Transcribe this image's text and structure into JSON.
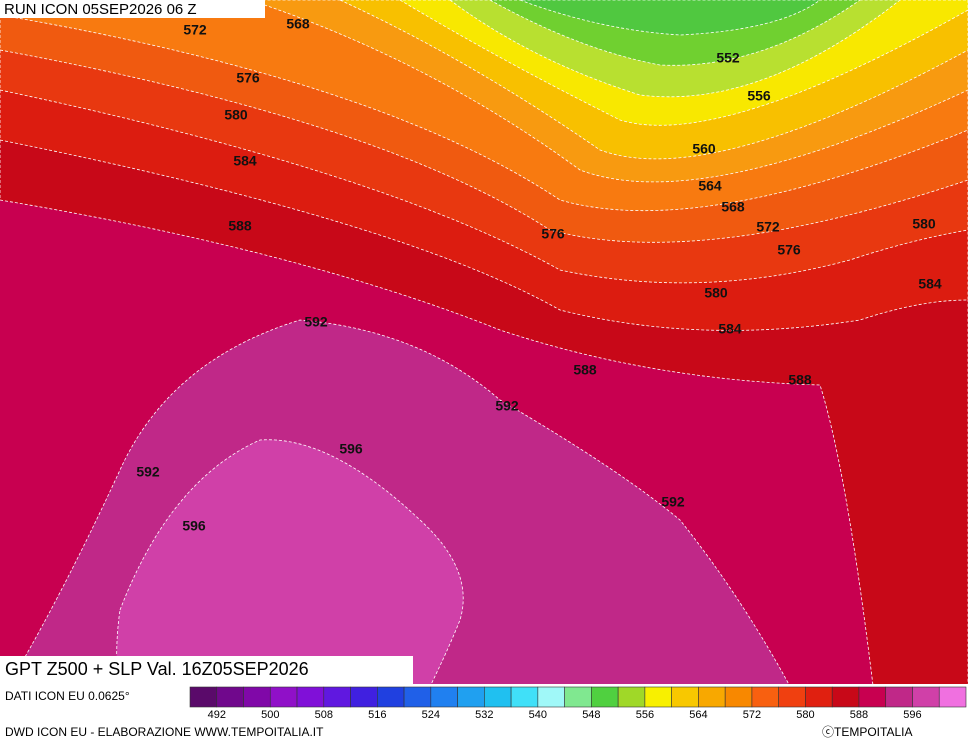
{
  "header": {
    "run": "RUN ICON 05SEP2026 06 Z"
  },
  "map": {
    "title": "GPT Z500 + SLP Val. 16Z05SEP2026",
    "contour_labels": [
      572,
      568,
      576,
      580,
      584,
      588,
      592,
      596,
      592,
      596,
      592,
      592,
      588,
      588,
      584,
      580,
      576,
      576,
      572,
      568,
      564,
      560,
      556,
      552,
      580,
      584
    ]
  },
  "footer": {
    "data_source": "DATI ICON EU 0.0625°",
    "credits": "DWD ICON EU - ELABORAZIONE WWW.TEMPOITALIA.IT",
    "copyright": "ⓒTEMPOITALIA"
  },
  "colorbar": {
    "colors": [
      "#5a0a6a",
      "#70088c",
      "#8008a8",
      "#9010c8",
      "#8010d8",
      "#6018e0",
      "#4020e0",
      "#2040e0",
      "#2060e8",
      "#2080f0",
      "#20a0f0",
      "#20c0f0",
      "#40e0f8",
      "#a0f8f8",
      "#80e890",
      "#50d040",
      "#a0d828",
      "#f8f000",
      "#f8c800",
      "#f8a800",
      "#f88800",
      "#f86010",
      "#f04010",
      "#e02010",
      "#c80818",
      "#c80050",
      "#c02888",
      "#d040a8",
      "#f070e0"
    ],
    "ticks": [
      492,
      500,
      508,
      516,
      524,
      532,
      540,
      548,
      556,
      564,
      572,
      580,
      588,
      596
    ]
  }
}
